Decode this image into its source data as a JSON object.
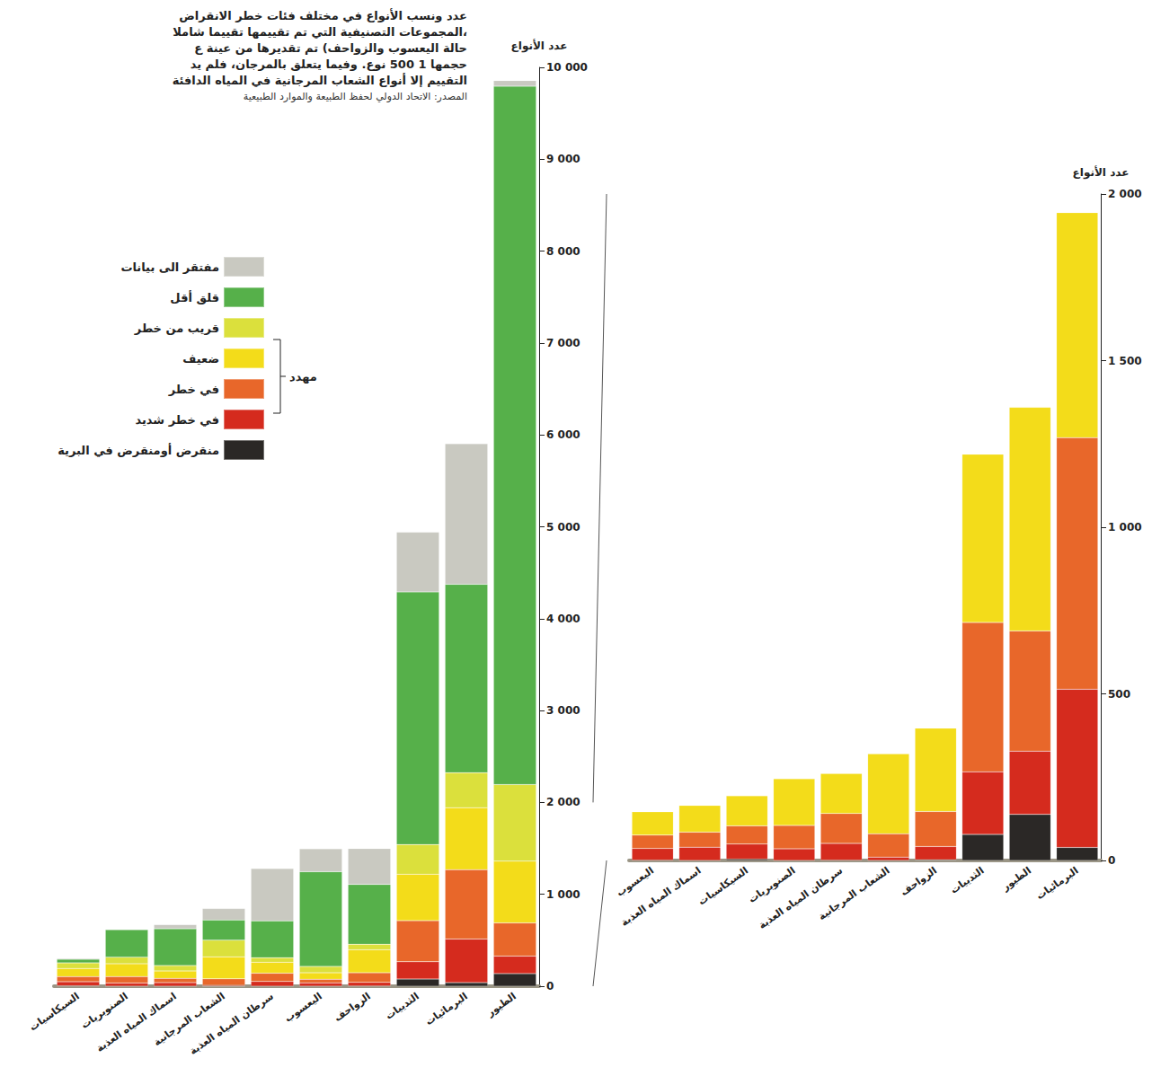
{
  "chart_data": [
    {
      "type": "bar",
      "stacked": true,
      "grid": false,
      "legend": "left",
      "title": "عدد ونسب الأنواع في مختلف فئات خطر الانقراض\nالمجموعات التصنيفية التي تم تقييمها تقييما شاملا،\nحالة اليعسوب والزواحف) تم تقديرها من عينة ع\nحجمها 1 500 نوع. وفيما يتعلق بالمرجان، فلم يد\nالتقييم إلا أنواع الشعاب المرجانية في المياه الدافئة",
      "subtitle": "المصدر: الاتحاد الدولي لحفظ الطبيعة والموارد الطبيعية",
      "ylabel": "عدد الأنواع",
      "annotations": [
        {
          "text": "مهدد",
          "series": [
            "ضعيف",
            "في خطر",
            "في خطر شديد"
          ]
        }
      ],
      "categories": [
        "السيكاسيات",
        "الصنوبريات",
        "اسماك المياه العذبة",
        "الشعاب المرجانية",
        "سرطان المياه العذبة",
        "اليعسوب",
        "الزواحف",
        "الثدييات",
        "البرمائيات",
        "الطيور"
      ],
      "series": [
        {
          "name": "منقرض أومنقرض في البرية",
          "color": "#2b2826",
          "values": [
            4,
            0,
            0,
            0,
            1,
            1,
            2,
            78,
            39,
            138
          ]
        },
        {
          "name": "في خطر شديد",
          "color": "#d52b1e",
          "values": [
            45,
            35,
            40,
            10,
            50,
            35,
            40,
            188,
            475,
            190
          ]
        },
        {
          "name": "في خطر",
          "color": "#e8672a",
          "values": [
            55,
            70,
            45,
            70,
            90,
            40,
            105,
            448,
            755,
            361
          ]
        },
        {
          "name": "ضعيف",
          "color": "#f3dc1a",
          "values": [
            90,
            140,
            80,
            240,
            120,
            70,
            250,
            505,
            675,
            671
          ]
        },
        {
          "name": "قريب من خطر",
          "color": "#dbe03c",
          "values": [
            60,
            70,
            60,
            180,
            50,
            70,
            60,
            323,
            380,
            835
          ]
        },
        {
          "name": "قلق أقل",
          "color": "#56b04a",
          "values": [
            40,
            300,
            400,
            220,
            400,
            1030,
            650,
            2750,
            2050,
            7600
          ]
        },
        {
          "name": "مفتقر الى بيانات",
          "color": "#c9c9c1",
          "values": [
            9,
            5,
            45,
            125,
            570,
            250,
            390,
            650,
            1530,
            62
          ]
        }
      ],
      "ylim": [
        0,
        10000
      ],
      "yticks": [
        0,
        {
          "value": 1000,
          "label": "1 000"
        },
        {
          "value": 2000,
          "label": "2 000"
        },
        {
          "value": 3000,
          "label": "3 000"
        },
        {
          "value": 4000,
          "label": "4 000"
        },
        {
          "value": 5000,
          "label": "5 000"
        },
        {
          "value": 6000,
          "label": "6 000"
        },
        {
          "value": 7000,
          "label": "7 000"
        },
        {
          "value": 8000,
          "label": "8 000"
        },
        {
          "value": 9000,
          "label": "9 000"
        },
        {
          "value": 10000,
          "label": "10 000"
        }
      ]
    },
    {
      "type": "bar",
      "stacked": true,
      "grid": false,
      "ylabel": "عدد الأنواع",
      "categories": [
        "اليعسوب",
        "اسماك المياه العذبة",
        "السيكاسيات",
        "الصنوبريات",
        "سرطان المياه العذبة",
        "الشعاب المرجانية",
        "الزواحف",
        "الثدييات",
        "الطيور",
        "البرمائيات"
      ],
      "series": [
        {
          "name": "منقرض أومنقرض في البرية",
          "color": "#2b2826",
          "values": [
            1,
            0,
            4,
            0,
            1,
            0,
            2,
            78,
            138,
            39
          ]
        },
        {
          "name": "في خطر شديد",
          "color": "#d52b1e",
          "values": [
            35,
            40,
            45,
            35,
            50,
            10,
            40,
            188,
            190,
            475
          ]
        },
        {
          "name": "في خطر",
          "color": "#e8672a",
          "values": [
            40,
            45,
            55,
            70,
            90,
            70,
            105,
            448,
            361,
            755
          ]
        },
        {
          "name": "ضعيف",
          "color": "#f3dc1a",
          "values": [
            70,
            80,
            90,
            140,
            120,
            240,
            250,
            505,
            671,
            675
          ]
        }
      ],
      "ylim": [
        0,
        2000
      ],
      "yticks": [
        0,
        500,
        {
          "value": 1000,
          "label": "1 000"
        },
        {
          "value": 1500,
          "label": "1 500"
        },
        {
          "value": 2000,
          "label": "2 000"
        }
      ]
    }
  ]
}
